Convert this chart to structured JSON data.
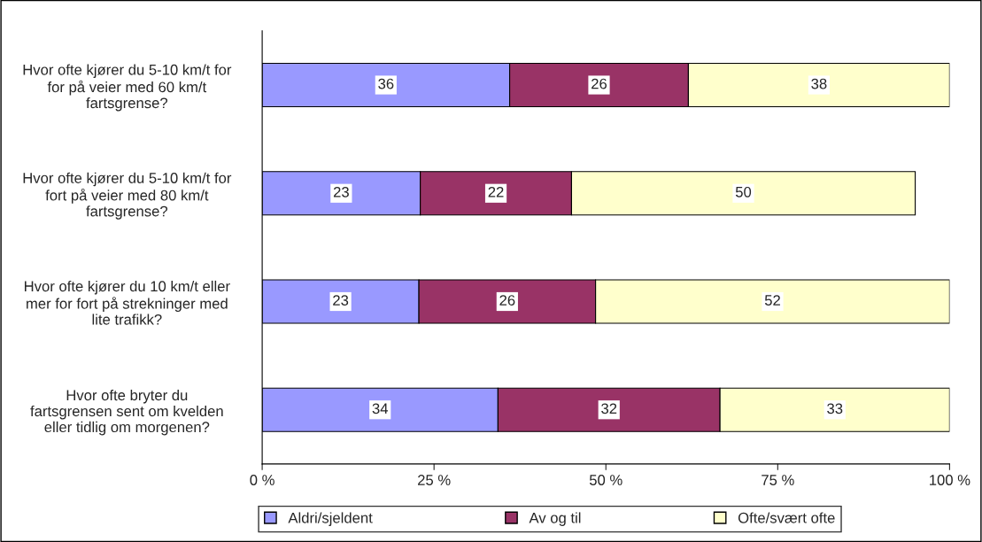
{
  "chart_data": {
    "type": "bar",
    "orientation": "horizontal",
    "stacked": true,
    "categories": [
      "Hvor ofte kjører du 5-10 km/t for\nfor på veier med 60 km/t\nfartsgrense?",
      "Hvor ofte kjører du 5-10 km/t for\nfort på veier med 80 km/t\nfartsgrense?",
      "Hvor ofte kjører du 10 km/t eller\nmer for fort på strekninger med\nlite trafikk?",
      "Hvor ofte bryter du\nfartsgrensen sent om kvelden\neller tidlig om morgenen?"
    ],
    "series": [
      {
        "name": "Aldri/sjeldent",
        "color": "#9999ff",
        "values": [
          36,
          23,
          22.8,
          34.3
        ],
        "value_labels": [
          "36",
          "23",
          "23",
          "34"
        ]
      },
      {
        "name": "Av og til",
        "color": "#993366",
        "values": [
          26,
          22,
          25.7,
          32.3
        ],
        "value_labels": [
          "26",
          "22",
          "26",
          "32"
        ]
      },
      {
        "name": "Ofte/svært ofte",
        "color": "#ffffcc",
        "values": [
          38,
          50,
          51.5,
          33.4
        ],
        "value_labels": [
          "38",
          "50",
          "52",
          "33"
        ]
      }
    ],
    "xlim": [
      0,
      100
    ],
    "xticks": [
      {
        "value": 0,
        "label": "0 %"
      },
      {
        "value": 25,
        "label": "25 %"
      },
      {
        "value": 50,
        "label": "50 %"
      },
      {
        "value": 75,
        "label": "75 %"
      },
      {
        "value": 100,
        "label": "100 %"
      }
    ],
    "grid": false,
    "legend": "bottom"
  }
}
